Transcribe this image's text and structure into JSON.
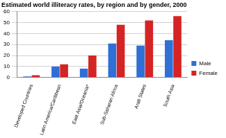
{
  "chart_data": {
    "type": "bar",
    "title": "Estimated world illiteracy rates, by region and by gender, 2000",
    "categories": [
      "Developed Countries",
      "Latin America/Caribbean",
      "East Asia/Oceania*",
      "Sub-Saharan Africa",
      "Arab States",
      "South Asia"
    ],
    "series": [
      {
        "name": "Male",
        "color": "#2f6fd6",
        "values": [
          1,
          10,
          8,
          31,
          29,
          34
        ]
      },
      {
        "name": "Female",
        "color": "#d42424",
        "values": [
          2,
          12,
          20,
          48,
          52,
          56
        ]
      }
    ],
    "ylim": [
      0,
      60
    ],
    "yticks": [
      0,
      10,
      20,
      30,
      40,
      50,
      60
    ],
    "grid": true,
    "legend": "right"
  }
}
